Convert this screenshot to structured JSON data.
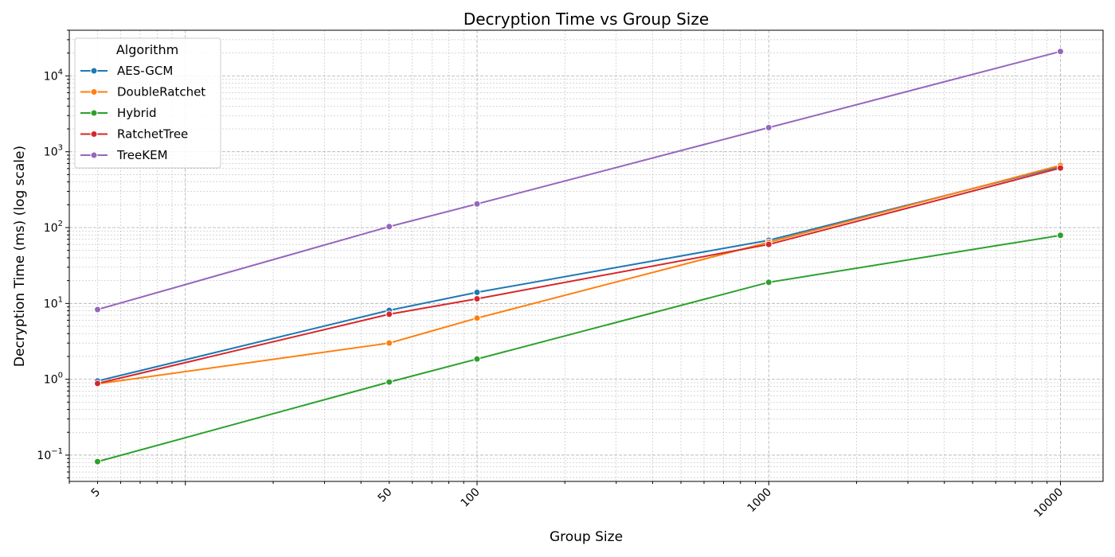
{
  "chart_data": {
    "type": "line",
    "title": "Decryption Time vs Group Size",
    "xlabel": "Group Size",
    "ylabel": "Decryption Time (ms) (log scale)",
    "xscale": "log",
    "yscale": "log",
    "xlim": [
      4,
      14000
    ],
    "ylim": [
      0.045,
      40000
    ],
    "x": [
      5,
      50,
      100,
      1000,
      10000
    ],
    "xtick_labels": [
      "5",
      "50",
      "100",
      "1000",
      "10000"
    ],
    "yticks": [
      {
        "base": "10",
        "exp": "−1"
      },
      {
        "base": "10",
        "exp": "0"
      },
      {
        "base": "10",
        "exp": "1"
      },
      {
        "base": "10",
        "exp": "2"
      },
      {
        "base": "10",
        "exp": "3"
      },
      {
        "base": "10",
        "exp": "4"
      }
    ],
    "grid": true,
    "legend": {
      "title": "Algorithm",
      "position": "top-left"
    },
    "series": [
      {
        "name": "AES-GCM",
        "color": "#1f77b4",
        "values": [
          0.95,
          8.1,
          14,
          68,
          640
        ]
      },
      {
        "name": "DoubleRatchet",
        "color": "#ff7f0e",
        "values": [
          0.87,
          3.0,
          6.4,
          64,
          660
        ]
      },
      {
        "name": "Hybrid",
        "color": "#2ca02c",
        "values": [
          0.082,
          0.92,
          1.85,
          19,
          79
        ]
      },
      {
        "name": "RatchetTree",
        "color": "#d62728",
        "values": [
          0.88,
          7.2,
          11.5,
          60,
          610
        ]
      },
      {
        "name": "TreeKEM",
        "color": "#9467bd",
        "values": [
          8.3,
          103,
          205,
          2080,
          21000
        ]
      }
    ]
  }
}
